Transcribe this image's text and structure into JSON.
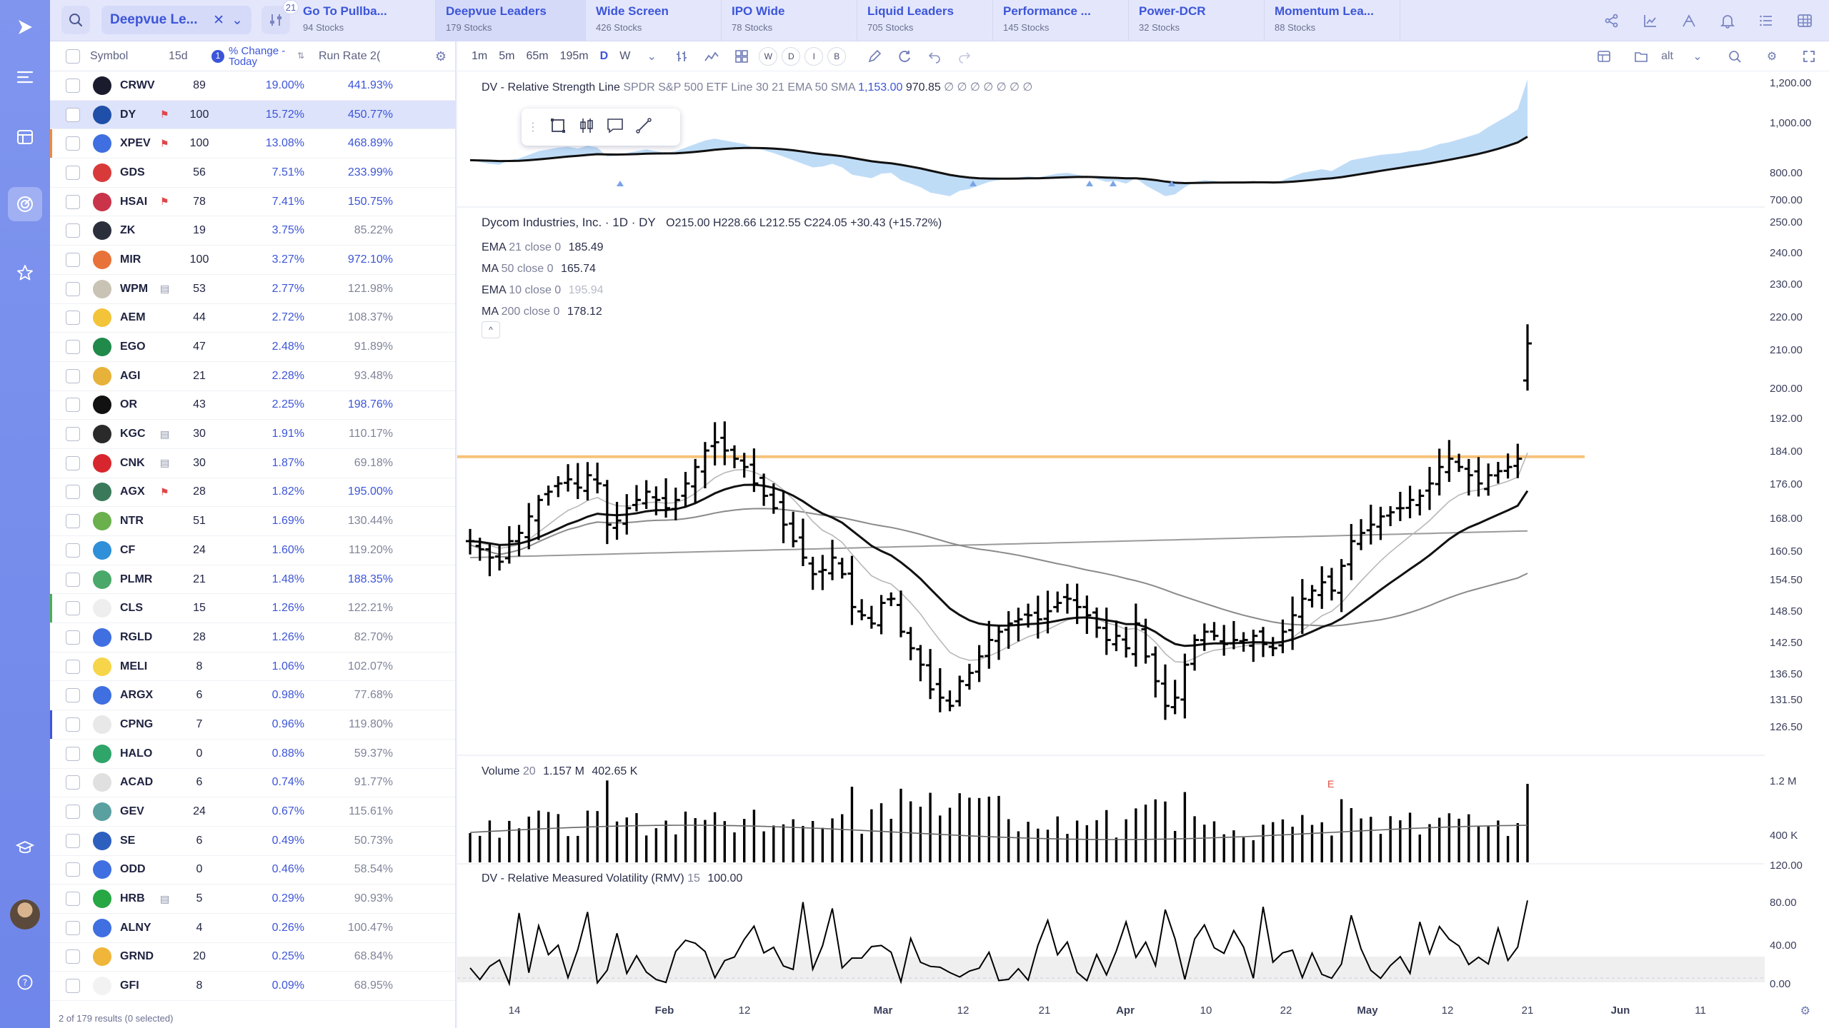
{
  "topbar": {
    "watchlist_name": "Deepvue Le...",
    "filter_count": "21",
    "tabs": [
      {
        "name": "Go To Pullba...",
        "count": "94 Stocks"
      },
      {
        "name": "Deepvue Leaders",
        "count": "179 Stocks"
      },
      {
        "name": "Wide Screen",
        "count": "426 Stocks"
      },
      {
        "name": "IPO Wide",
        "count": "78 Stocks"
      },
      {
        "name": "Liquid Leaders",
        "count": "705 Stocks"
      },
      {
        "name": "Performance ...",
        "count": "145 Stocks"
      },
      {
        "name": "Power-DCR",
        "count": "32 Stocks"
      },
      {
        "name": "Momentum Lea...",
        "count": "88 Stocks"
      }
    ]
  },
  "watchlist": {
    "headers": {
      "symbol": "Symbol",
      "d15": "15d",
      "change": "% Change - Today",
      "change_badge": "1",
      "runrate": "Run Rate 2("
    },
    "rows": [
      {
        "sym": "CRWV",
        "d15": "89",
        "chg": "19.00%",
        "rr": "441.93%",
        "hi": true,
        "logo": "#1b1b2e",
        "flag": false,
        "sel": false
      },
      {
        "sym": "DY",
        "d15": "100",
        "chg": "15.72%",
        "rr": "450.77%",
        "hi": true,
        "logo": "#1f4fa8",
        "flag": true,
        "sel": true
      },
      {
        "sym": "XPEV",
        "d15": "100",
        "chg": "13.08%",
        "rr": "468.89%",
        "hi": true,
        "logo": "#3f6fe0",
        "flag": true,
        "sel": false,
        "bar": "#f08a3c"
      },
      {
        "sym": "GDS",
        "d15": "56",
        "chg": "7.51%",
        "rr": "233.99%",
        "hi": true,
        "logo": "#d83a3a",
        "flag": false,
        "sel": false
      },
      {
        "sym": "HSAI",
        "d15": "78",
        "chg": "7.41%",
        "rr": "150.75%",
        "hi": true,
        "logo": "#c9344a",
        "flag": true,
        "sel": false
      },
      {
        "sym": "ZK",
        "d15": "19",
        "chg": "3.75%",
        "rr": "85.22%",
        "hi": false,
        "logo": "#2b2f3c",
        "flag": false,
        "sel": false
      },
      {
        "sym": "MIR",
        "d15": "100",
        "chg": "3.27%",
        "rr": "972.10%",
        "hi": true,
        "logo": "#e8733a",
        "flag": false,
        "sel": false
      },
      {
        "sym": "WPM",
        "d15": "53",
        "chg": "2.77%",
        "rr": "121.98%",
        "hi": false,
        "logo": "#c8c3b5",
        "flag": false,
        "sel": false,
        "note": true
      },
      {
        "sym": "AEM",
        "d15": "44",
        "chg": "2.72%",
        "rr": "108.37%",
        "hi": false,
        "logo": "#f3c43a",
        "flag": false,
        "sel": false
      },
      {
        "sym": "EGO",
        "d15": "47",
        "chg": "2.48%",
        "rr": "91.89%",
        "hi": false,
        "logo": "#1f8a4a",
        "flag": false,
        "sel": false
      },
      {
        "sym": "AGI",
        "d15": "21",
        "chg": "2.28%",
        "rr": "93.48%",
        "hi": false,
        "logo": "#e7b23a",
        "flag": false,
        "sel": false
      },
      {
        "sym": "OR",
        "d15": "43",
        "chg": "2.25%",
        "rr": "198.76%",
        "hi": true,
        "logo": "#111111",
        "flag": false,
        "sel": false
      },
      {
        "sym": "KGC",
        "d15": "30",
        "chg": "1.91%",
        "rr": "110.17%",
        "hi": false,
        "logo": "#2a2a2a",
        "flag": false,
        "sel": false,
        "note": true
      },
      {
        "sym": "CNK",
        "d15": "30",
        "chg": "1.87%",
        "rr": "69.18%",
        "hi": false,
        "logo": "#d8262e",
        "flag": false,
        "sel": false,
        "note": true
      },
      {
        "sym": "AGX",
        "d15": "28",
        "chg": "1.82%",
        "rr": "195.00%",
        "hi": true,
        "logo": "#3a7a5a",
        "flag": true,
        "sel": false
      },
      {
        "sym": "NTR",
        "d15": "51",
        "chg": "1.69%",
        "rr": "130.44%",
        "hi": false,
        "logo": "#6ab04c",
        "flag": false,
        "sel": false
      },
      {
        "sym": "CF",
        "d15": "24",
        "chg": "1.60%",
        "rr": "119.20%",
        "hi": false,
        "logo": "#2f8fd8",
        "flag": false,
        "sel": false
      },
      {
        "sym": "PLMR",
        "d15": "21",
        "chg": "1.48%",
        "rr": "188.35%",
        "hi": true,
        "logo": "#4aa86a",
        "flag": false,
        "sel": false
      },
      {
        "sym": "CLS",
        "d15": "15",
        "chg": "1.26%",
        "rr": "122.21%",
        "hi": false,
        "logo": "#eeeeee",
        "flag": false,
        "sel": false,
        "bar": "#4caf50"
      },
      {
        "sym": "RGLD",
        "d15": "28",
        "chg": "1.26%",
        "rr": "82.70%",
        "hi": false,
        "logo": "#3f6fe0",
        "flag": false,
        "sel": false
      },
      {
        "sym": "MELI",
        "d15": "8",
        "chg": "1.06%",
        "rr": "102.07%",
        "hi": false,
        "logo": "#f7d54a",
        "flag": false,
        "sel": false
      },
      {
        "sym": "ARGX",
        "d15": "6",
        "chg": "0.98%",
        "rr": "77.68%",
        "hi": false,
        "logo": "#3f6fe0",
        "flag": false,
        "sel": false
      },
      {
        "sym": "CPNG",
        "d15": "7",
        "chg": "0.96%",
        "rr": "119.80%",
        "hi": false,
        "logo": "#e8e8e8",
        "flag": false,
        "sel": false,
        "bar": "#3c55d8"
      },
      {
        "sym": "HALO",
        "d15": "0",
        "chg": "0.88%",
        "rr": "59.37%",
        "hi": false,
        "logo": "#2fa56a",
        "flag": false,
        "sel": false
      },
      {
        "sym": "ACAD",
        "d15": "6",
        "chg": "0.74%",
        "rr": "91.77%",
        "hi": false,
        "logo": "#e0e0e0",
        "flag": false,
        "sel": false
      },
      {
        "sym": "GEV",
        "d15": "24",
        "chg": "0.67%",
        "rr": "115.61%",
        "hi": false,
        "logo": "#5aa0a0",
        "flag": false,
        "sel": false
      },
      {
        "sym": "SE",
        "d15": "6",
        "chg": "0.49%",
        "rr": "50.73%",
        "hi": false,
        "logo": "#2d5fbf",
        "flag": false,
        "sel": false
      },
      {
        "sym": "ODD",
        "d15": "0",
        "chg": "0.46%",
        "rr": "58.54%",
        "hi": false,
        "logo": "#3f6fe0",
        "flag": false,
        "sel": false
      },
      {
        "sym": "HRB",
        "d15": "5",
        "chg": "0.29%",
        "rr": "90.93%",
        "hi": false,
        "logo": "#28a745",
        "flag": false,
        "sel": false,
        "note": true
      },
      {
        "sym": "ALNY",
        "d15": "4",
        "chg": "0.26%",
        "rr": "100.47%",
        "hi": false,
        "logo": "#3f6fe0",
        "flag": false,
        "sel": false
      },
      {
        "sym": "GRND",
        "d15": "20",
        "chg": "0.25%",
        "rr": "68.84%",
        "hi": false,
        "logo": "#f0b63a",
        "flag": false,
        "sel": false
      },
      {
        "sym": "GFI",
        "d15": "8",
        "chg": "0.09%",
        "rr": "68.95%",
        "hi": false,
        "logo": "#f2f2f2",
        "flag": false,
        "sel": false
      }
    ],
    "footer": "2 of 179 results (0 selected)"
  },
  "chart": {
    "timeframes": [
      "1m",
      "5m",
      "65m",
      "195m",
      "D",
      "W"
    ],
    "active_timeframe": "D",
    "period_pills": [
      "W",
      "D",
      "I",
      "B"
    ],
    "alt_label": "alt",
    "rs_legend": {
      "title": "DV - Relative Strength Line",
      "params": "SPDR S&P 500 ETF Line 30 21 EMA 50 SMA",
      "v1": "1,153.00",
      "v2": "970.85",
      "tail": "∅ ∅ ∅ ∅ ∅ ∅ ∅"
    },
    "price_legend": {
      "title": "Dycom Industries, Inc. · 1D · DY",
      "ohlc": "O215.00  H228.66  L212.55  C224.05  +30.43 (+15.72%)",
      "mas": [
        {
          "label": "EMA",
          "params": "21 close 0",
          "value": "185.49"
        },
        {
          "label": "MA",
          "params": "50 close 0",
          "value": "165.74"
        },
        {
          "label": "EMA",
          "params": "10 close 0",
          "value": "195.94"
        },
        {
          "label": "MA",
          "params": "200 close 0",
          "value": "178.12"
        }
      ]
    },
    "volume_legend": {
      "title": "Volume",
      "params": "20",
      "v1": "1.157 M",
      "v2": "402.65 K"
    },
    "rmv_legend": {
      "title": "DV - Relative Measured Volatility (RMV)",
      "params": "15",
      "value": "100.00"
    },
    "earnings_marker": "E",
    "rs_axis": [
      "1,200.00",
      "1,000.00",
      "800.00",
      "700.00"
    ],
    "price_axis": [
      "250.00",
      "240.00",
      "230.00",
      "220.00",
      "210.00",
      "200.00",
      "192.00",
      "184.00",
      "176.00",
      "168.00",
      "160.50",
      "154.50",
      "148.50",
      "142.50",
      "136.50",
      "131.50",
      "126.50"
    ],
    "vol_axis": [
      "1.2 M",
      "400 K"
    ],
    "rmv_axis": [
      "120.00",
      "80.00",
      "40.00",
      "0.00"
    ],
    "x_labels": [
      {
        "text": "14",
        "bold": false
      },
      {
        "text": "Feb",
        "bold": true
      },
      {
        "text": "12",
        "bold": false
      },
      {
        "text": "Mar",
        "bold": true
      },
      {
        "text": "12",
        "bold": false
      },
      {
        "text": "21",
        "bold": false
      },
      {
        "text": "Apr",
        "bold": true
      },
      {
        "text": "10",
        "bold": false
      },
      {
        "text": "22",
        "bold": false
      },
      {
        "text": "May",
        "bold": true
      },
      {
        "text": "12",
        "bold": false
      },
      {
        "text": "21",
        "bold": false
      },
      {
        "text": "Jun",
        "bold": true
      },
      {
        "text": "11",
        "bold": false
      }
    ]
  },
  "chart_data": {
    "type": "bar",
    "title": "Dycom Industries, Inc. · 1D · DY",
    "resistance_level": 196.5,
    "price_range": [
      124,
      254
    ],
    "closes": [
      176,
      174,
      172,
      171,
      176,
      178,
      182,
      186,
      188,
      190,
      191,
      189,
      192,
      190,
      180,
      181,
      184,
      186,
      188,
      186,
      184,
      186,
      190,
      194,
      198,
      200,
      198,
      196,
      194,
      190,
      187,
      184,
      180,
      176,
      172,
      168,
      169,
      172,
      168,
      160,
      158,
      156,
      161,
      162,
      154,
      150,
      146,
      140,
      138,
      136,
      142,
      144,
      148,
      152,
      154,
      156,
      157,
      158,
      157,
      159,
      161,
      162,
      160,
      158,
      155,
      152,
      153,
      150,
      156,
      148,
      142,
      136,
      138,
      146,
      152,
      154,
      153,
      151,
      152,
      152,
      153,
      151,
      150,
      154,
      158,
      162,
      164,
      166,
      164,
      170,
      176,
      178,
      180,
      182,
      183,
      184,
      186,
      187,
      190,
      194,
      196,
      194,
      192,
      190,
      192,
      193,
      194,
      196,
      224
    ],
    "volume_scale_max": 1.2,
    "rmv_last": 100
  }
}
